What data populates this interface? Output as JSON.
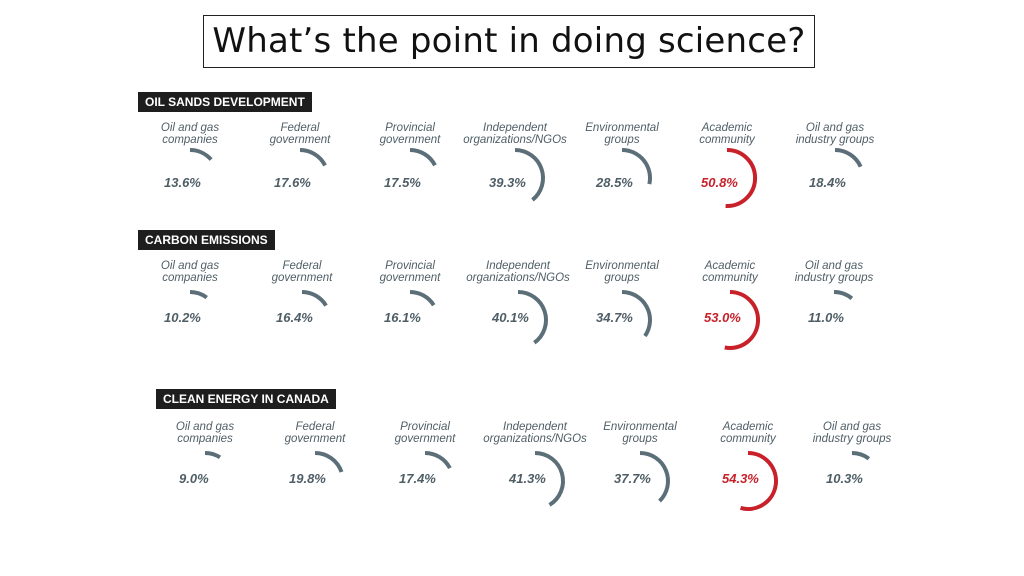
{
  "title": "What’s the point in doing science?",
  "colors": {
    "normal": "#5c6f79",
    "academic": "#c8212a",
    "label": "#4f5e66"
  },
  "chart_data": [
    {
      "type": "radial-arc",
      "title": "OIL SANDS DEVELOPMENT",
      "categories": [
        "Oil and gas companies",
        "Federal government",
        "Provincial government",
        "Independent organizations/NGOs",
        "Environmental groups",
        "Academic community",
        "Oil and gas industry groups"
      ],
      "values": [
        13.6,
        17.6,
        17.5,
        39.3,
        28.5,
        50.8,
        18.4
      ],
      "labels": [
        "13.6%",
        "17.6%",
        "17.5%",
        "39.3%",
        "28.5%",
        "50.8%",
        "18.4%"
      ]
    },
    {
      "type": "radial-arc",
      "title": "CARBON EMISSIONS",
      "categories": [
        "Oil and gas companies",
        "Federal government",
        "Provincial government",
        "Independent organizations/NGOs",
        "Environmental groups",
        "Academic community",
        "Oil and gas industry groups"
      ],
      "values": [
        10.2,
        16.4,
        16.1,
        40.1,
        34.7,
        53.0,
        11.0
      ],
      "labels": [
        "10.2%",
        "16.4%",
        "16.1%",
        "40.1%",
        "34.7%",
        "53.0%",
        "11.0%"
      ]
    },
    {
      "type": "radial-arc",
      "title": "CLEAN ENERGY IN CANADA",
      "categories": [
        "Oil and gas companies",
        "Federal government",
        "Provincial government",
        "Independent organizations/NGOs",
        "Environmental groups",
        "Academic community",
        "Oil and gas industry groups"
      ],
      "values": [
        9.0,
        19.8,
        17.4,
        41.3,
        37.7,
        54.3,
        10.3
      ],
      "labels": [
        "9.0%",
        "19.8%",
        "17.4%",
        "41.3%",
        "37.7%",
        "54.3%",
        "10.3%"
      ]
    }
  ],
  "column_labels": [
    [
      "Oil and gas",
      "companies"
    ],
    [
      "Federal",
      "government"
    ],
    [
      "Provincial",
      "government"
    ],
    [
      "Independent",
      "organizations/NGOs"
    ],
    [
      "Environmental",
      "groups"
    ],
    [
      "Academic",
      "community"
    ],
    [
      "Oil and gas",
      "industry groups"
    ]
  ],
  "highlight_index": 5
}
